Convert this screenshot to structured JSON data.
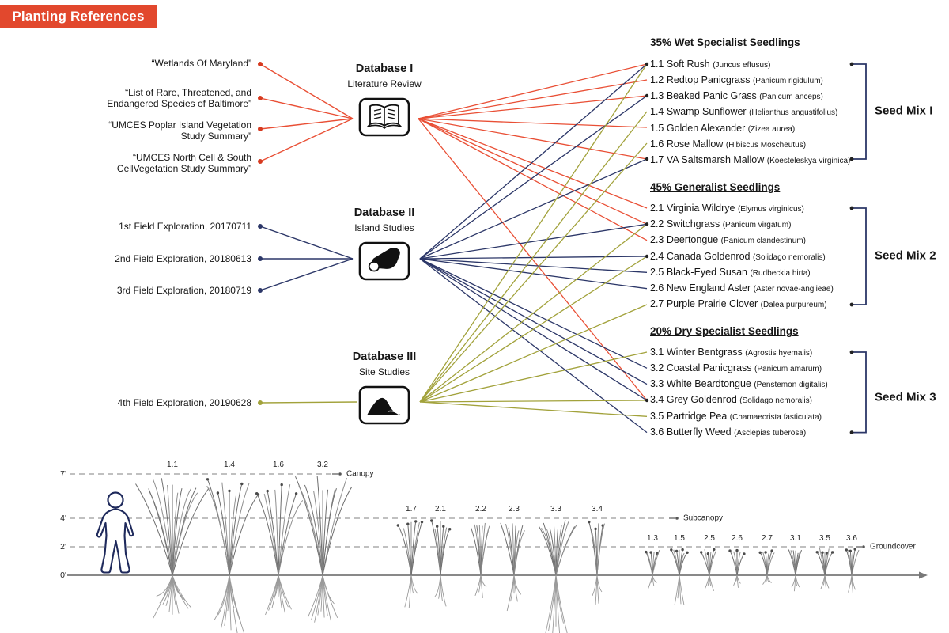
{
  "title": "Planting References",
  "colors": {
    "accent": "#E2482D",
    "literature": "#E94F35",
    "island": "#2C3768",
    "site": "#A2A23B"
  },
  "sources": {
    "literature": [
      "“Wetlands Of Maryland”",
      "“List of Rare, Threatened, and\nEndangered Species of Baltimore”",
      "“UMCES Poplar Island Vegetation\nStudy Summary”",
      "“UMCES North Cell & South\nCellVegetation Study Summary”"
    ],
    "field": [
      "1st Field Exploration, 20170711",
      "2nd Field Exploration, 20180613",
      "3rd Field Exploration, 20180719",
      "4th Field Exploration, 20190628"
    ]
  },
  "databases": [
    {
      "title": "Database I",
      "subtitle": "Literature Review",
      "icon": "open-book-icon"
    },
    {
      "title": "Database II",
      "subtitle": "Island Studies",
      "icon": "island-icon"
    },
    {
      "title": "Database III",
      "subtitle": "Site Studies",
      "icon": "mound-icon"
    }
  ],
  "lists": [
    {
      "header": "35% Wet Specialist Seedlings",
      "items": [
        {
          "num": "1.1",
          "name": "Soft Rush",
          "latin": "Juncus effusus"
        },
        {
          "num": "1.2",
          "name": "Redtop Panicgrass",
          "latin": "Panicum rigidulum"
        },
        {
          "num": "1.3",
          "name": "Beaked Panic Grass",
          "latin": "Panicum anceps"
        },
        {
          "num": "1.4",
          "name": "Swamp Sunflower",
          "latin": "Helianthus angustifolius"
        },
        {
          "num": "1.5",
          "name": "Golden Alexander",
          "latin": "Zizea aurea"
        },
        {
          "num": "1.6",
          "name": "Rose Mallow",
          "latin": "Hibiscus Moscheutus"
        },
        {
          "num": "1.7",
          "name": "VA Saltsmarsh Mallow",
          "latin": "Koesteleskya virginica"
        }
      ]
    },
    {
      "header": "45% Generalist Seedlings",
      "items": [
        {
          "num": "2.1",
          "name": "Virginia Wildrye",
          "latin": "Elymus virginicus"
        },
        {
          "num": "2.2",
          "name": "Switchgrass",
          "latin": "Panicum virgatum"
        },
        {
          "num": "2.3",
          "name": "Deertongue",
          "latin": "Panicum clandestinum"
        },
        {
          "num": "2.4",
          "name": "Canada Goldenrod",
          "latin": "Solidago nemoralis"
        },
        {
          "num": "2.5",
          "name": "Black-Eyed Susan",
          "latin": "Rudbeckia hirta"
        },
        {
          "num": "2.6",
          "name": "New England Aster",
          "latin": "Aster novae-anglieae"
        },
        {
          "num": "2.7",
          "name": "Purple Prairie Clover",
          "latin": "Dalea purpureum"
        }
      ]
    },
    {
      "header": "20% Dry Specialist Seedlings",
      "items": [
        {
          "num": "3.1",
          "name": "Winter Bentgrass",
          "latin": "Agrostis hyemalis"
        },
        {
          "num": "3.2",
          "name": "Coastal Panicgrass",
          "latin": "Panicum amarum"
        },
        {
          "num": "3.3",
          "name": "White Beardtongue",
          "latin": "Penstemon digitalis"
        },
        {
          "num": "3.4",
          "name": "Grey Goldenrod",
          "latin": "Solidago nemoralis"
        },
        {
          "num": "3.5",
          "name": "Partridge Pea",
          "latin": "Chamaecrista fasticulata"
        },
        {
          "num": "3.6",
          "name": "Butterfly Weed",
          "latin": "Asclepias tuberosa"
        }
      ]
    }
  ],
  "seed_mixes": [
    "Seed Mix I",
    "Seed Mix 2",
    "Seed Mix 3"
  ],
  "connections": {
    "db1": [
      "1.1",
      "1.2",
      "1.3",
      "1.5",
      "1.7",
      "2.1",
      "2.2",
      "2.3",
      "3.4"
    ],
    "db2": [
      "1.1",
      "1.3",
      "1.7",
      "2.2",
      "2.4",
      "2.5",
      "2.6",
      "3.2",
      "3.3",
      "3.4",
      "3.6"
    ],
    "db3": [
      "1.1",
      "1.4",
      "1.6",
      "2.2",
      "2.4",
      "2.7",
      "3.1",
      "3.4",
      "3.5"
    ]
  },
  "profile": {
    "axis_labels": [
      "7'",
      "4'",
      "2'",
      "0'"
    ],
    "zones": [
      {
        "label": "Canopy",
        "items": [
          "1.1",
          "1.4",
          "1.6",
          "3.2"
        ]
      },
      {
        "label": "Subcanopy",
        "items": [
          "1.7",
          "2.1",
          "2.2",
          "2.3",
          "3.3",
          "3.4"
        ]
      },
      {
        "label": "Groundcover",
        "items": [
          "1.3",
          "1.5",
          "2.5",
          "2.6",
          "2.7",
          "3.1",
          "3.5",
          "3.6"
        ]
      }
    ]
  }
}
